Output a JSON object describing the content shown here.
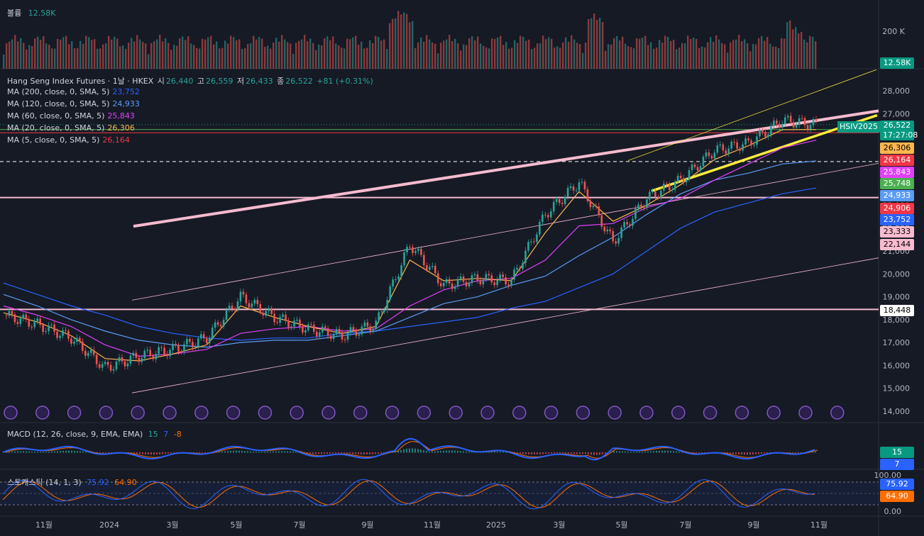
{
  "volume_panel": {
    "label": "볼륨",
    "value": "12.58K",
    "axis_ticks": [
      "200 K"
    ],
    "last_tag": "12.58K"
  },
  "header": {
    "symbol": "Hang Seng Index Futures · 1날 · HKEX",
    "open_label": "시",
    "open": "26,440",
    "high_label": "고",
    "high": "26,559",
    "low_label": "저",
    "low": "26,433",
    "close_label": "종",
    "close": "26,522",
    "change": "+81 (+0.31%)"
  },
  "ma_legend": [
    {
      "label": "MA (200, close, 0, SMA, 5)",
      "value": "23,752",
      "color": "#2962ff"
    },
    {
      "label": "MA (120, close, 0, SMA, 5)",
      "value": "24,933",
      "color": "#5b9cf6"
    },
    {
      "label": "MA (60, close, 0, SMA, 5)",
      "value": "25,843",
      "color": "#e040fb"
    },
    {
      "label": "MA (20, close, 0, SMA, 5)",
      "value": "26,306",
      "color": "#ffb74d"
    },
    {
      "label": "MA (5, close, 0, SMA, 5)",
      "value": "26,164",
      "color": "#f23645"
    }
  ],
  "price_axis": {
    "ticks": [
      "28,000",
      "27,000",
      "26,000",
      "25,000",
      "24,000",
      "23,000",
      "22,000",
      "21,000",
      "20,000",
      "19,000",
      "18,000",
      "17,000",
      "16,000",
      "15,000",
      "14,000"
    ]
  },
  "price_tags": [
    {
      "value": "26,522",
      "sub": "17:27:08",
      "color": "#089981"
    },
    {
      "value": "26,306",
      "color": "#ffb74d",
      "text_color": "#000000"
    },
    {
      "value": "26,164",
      "color": "#f23645"
    },
    {
      "value": "25,843",
      "color": "#e040fb"
    },
    {
      "value": "25,748",
      "color": "#4caf50"
    },
    {
      "value": "24,933",
      "color": "#5b9cf6"
    },
    {
      "value": "24,906",
      "color": "#f23645"
    },
    {
      "value": "23,752",
      "color": "#2962ff"
    },
    {
      "value": "23,333",
      "color": "#f8bbd0",
      "text_color": "#000000"
    },
    {
      "value": "22,144",
      "color": "#f8bbd0",
      "text_color": "#000000"
    },
    {
      "value": "18,448",
      "color": "#ffffff",
      "text_color": "#000000"
    }
  ],
  "symbol_tag": "HSIV2025",
  "time_axis": {
    "ticks": [
      "11월",
      "2024",
      "3월",
      "5월",
      "7월",
      "9월",
      "11월",
      "2025",
      "3월",
      "5월",
      "7월",
      "9월",
      "11월"
    ]
  },
  "macd": {
    "label": "MACD (12, 26, close, 9, EMA, EMA)",
    "v1": "15",
    "v2": "7",
    "v3": "-8",
    "tag1": "15",
    "tag2": "7"
  },
  "stoch": {
    "label": "스토캐스틱 (14, 1, 3)",
    "k": "75.92",
    "d": "64.90",
    "axis_ticks": [
      "100.00",
      "0.00"
    ],
    "tag_k": "75.92",
    "tag_d": "64.90"
  },
  "chart_data": {
    "type": "candlestick",
    "title": "Hang Seng Index Futures · 1날 · HKEX",
    "ylim": [
      14000,
      28000
    ],
    "x": [
      "2023-10",
      "2023-11",
      "2023-12",
      "2024-01",
      "2024-02",
      "2024-03",
      "2024-04",
      "2024-05",
      "2024-06",
      "2024-07",
      "2024-08",
      "2024-09",
      "2024-10",
      "2024-11",
      "2024-12",
      "2025-01",
      "2025-02",
      "2025-03",
      "2025-04",
      "2025-05",
      "2025-06",
      "2025-07",
      "2025-08",
      "2025-09",
      "2025-10"
    ],
    "series": [
      {
        "name": "close",
        "values": [
          18200,
          17800,
          17200,
          15900,
          16400,
          16700,
          17200,
          19000,
          18100,
          17600,
          17300,
          17800,
          21300,
          19500,
          19800,
          19700,
          22600,
          24000,
          21400,
          23300,
          24100,
          25400,
          25700,
          26700,
          26522
        ]
      },
      {
        "name": "MA (200, close, 0, SMA, 5)",
        "values": [
          19600,
          19100,
          18600,
          18200,
          17700,
          17400,
          17200,
          17100,
          17200,
          17200,
          17400,
          17500,
          17700,
          17900,
          18100,
          18500,
          18800,
          19400,
          20000,
          21000,
          22000,
          22700,
          23100,
          23500,
          23752
        ]
      },
      {
        "name": "MA (120, close, 0, SMA, 5)",
        "values": [
          19100,
          18600,
          18000,
          17500,
          17100,
          16900,
          16800,
          17000,
          17100,
          17100,
          17300,
          17500,
          18100,
          18700,
          19000,
          19500,
          19900,
          20800,
          21600,
          22600,
          23500,
          24100,
          24400,
          24800,
          24933
        ]
      },
      {
        "name": "MA (60, close, 0, SMA, 5)",
        "values": [
          18600,
          18200,
          17700,
          16900,
          16400,
          16500,
          16700,
          17400,
          17600,
          17700,
          17500,
          17600,
          18600,
          19300,
          19700,
          19800,
          20600,
          22100,
          22200,
          22900,
          23300,
          24100,
          24800,
          25500,
          25843
        ]
      },
      {
        "name": "MA (20, close, 0, SMA, 5)",
        "values": [
          18300,
          17900,
          17300,
          16300,
          16200,
          16500,
          16900,
          18600,
          18100,
          17700,
          17400,
          17700,
          20600,
          19700,
          19800,
          19700,
          21800,
          23600,
          22300,
          23000,
          23900,
          25000,
          25600,
          26300,
          26306
        ]
      }
    ],
    "price_lines": [
      26306,
      26164,
      23333,
      18448
    ],
    "xlabel": "",
    "ylabel": ""
  }
}
